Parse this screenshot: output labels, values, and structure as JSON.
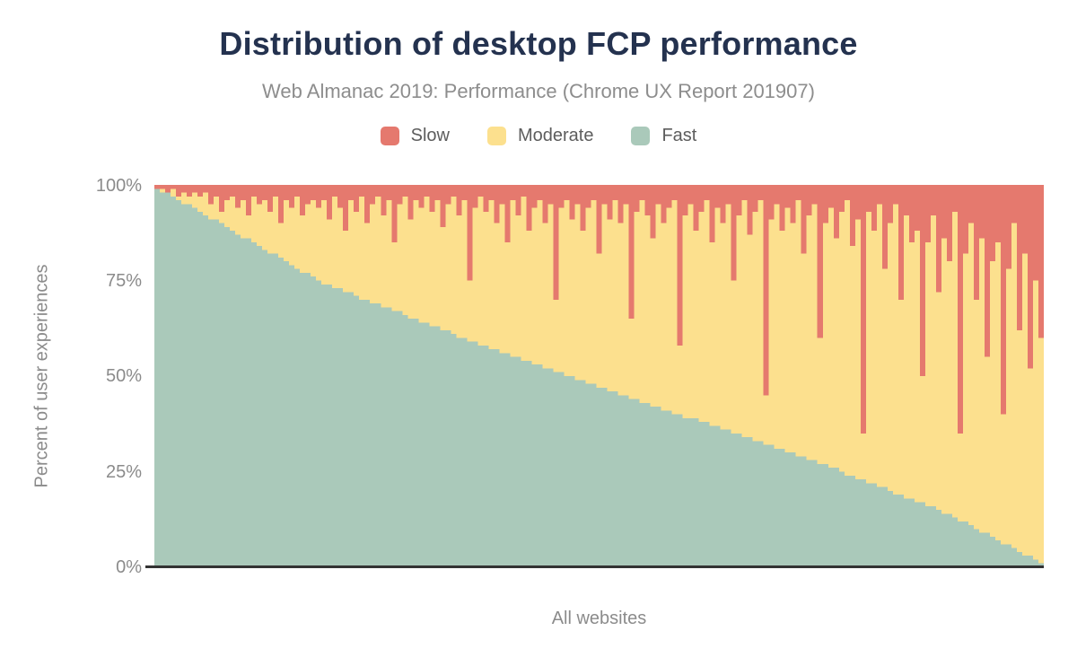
{
  "chart_data": {
    "type": "bar",
    "stacked": true,
    "normalized_percent": true,
    "title": "Distribution of desktop FCP performance",
    "subtitle": "Web Almanac 2019: Performance (Chrome UX Report 201907)",
    "xlabel": "All websites",
    "ylabel": "Percent of user experiences",
    "ylim": [
      0,
      100
    ],
    "y_tick_labels": [
      "100%",
      "75%",
      "50%",
      "25%",
      "0%"
    ],
    "legend_position": "top",
    "grid": false,
    "axis_line_color": "#333333",
    "series": [
      {
        "name": "Slow",
        "color": "#e5796e",
        "values": [
          1,
          1,
          2,
          1,
          3,
          2,
          3,
          2,
          3,
          2,
          5,
          3,
          7,
          4,
          3,
          6,
          4,
          8,
          3,
          5,
          4,
          7,
          3,
          10,
          4,
          6,
          3,
          8,
          5,
          4,
          6,
          4,
          9,
          3,
          6,
          12,
          4,
          7,
          3,
          10,
          5,
          3,
          8,
          4,
          15,
          5,
          3,
          9,
          4,
          6,
          3,
          7,
          4,
          11,
          5,
          3,
          8,
          4,
          25,
          6,
          3,
          7,
          4,
          10,
          5,
          15,
          4,
          8,
          3,
          12,
          6,
          4,
          10,
          5,
          30,
          6,
          4,
          9,
          5,
          12,
          6,
          4,
          18,
          5,
          9,
          4,
          10,
          5,
          35,
          7,
          4,
          8,
          14,
          5,
          10,
          6,
          4,
          42,
          8,
          5,
          12,
          7,
          4,
          15,
          6,
          10,
          5,
          25,
          8,
          4,
          13,
          7,
          4,
          55,
          9,
          5,
          12,
          6,
          10,
          4,
          18,
          8,
          5,
          40,
          10,
          6,
          14,
          7,
          4,
          16,
          9,
          65,
          7,
          12,
          5,
          22,
          10,
          5,
          30,
          8,
          15,
          12,
          50,
          15,
          8,
          28,
          14,
          20,
          7,
          65,
          18,
          10,
          30,
          14,
          45,
          20,
          15,
          60,
          22,
          10,
          38,
          18,
          48,
          25,
          40
        ]
      },
      {
        "name": "Moderate",
        "color": "#fce08e",
        "values": [
          0,
          1,
          0,
          2,
          1,
          3,
          2,
          4,
          4,
          6,
          4,
          6,
          3,
          7,
          9,
          7,
          10,
          6,
          12,
          11,
          13,
          11,
          15,
          9,
          16,
          15,
          19,
          15,
          18,
          20,
          19,
          22,
          17,
          24,
          21,
          16,
          24,
          22,
          27,
          20,
          26,
          28,
          24,
          28,
          18,
          28,
          31,
          26,
          31,
          30,
          33,
          30,
          33,
          27,
          33,
          36,
          32,
          36,
          16,
          35,
          39,
          35,
          39,
          33,
          39,
          29,
          41,
          37,
          43,
          34,
          41,
          43,
          38,
          43,
          19,
          43,
          46,
          41,
          46,
          39,
          46,
          48,
          35,
          48,
          45,
          50,
          45,
          50,
          21,
          49,
          53,
          49,
          44,
          53,
          49,
          53,
          56,
          18,
          53,
          56,
          49,
          55,
          58,
          48,
          57,
          54,
          59,
          40,
          57,
          62,
          53,
          60,
          63,
          13,
          59,
          64,
          57,
          64,
          60,
          67,
          53,
          64,
          67,
          33,
          63,
          68,
          60,
          68,
          72,
          60,
          68,
          12,
          71,
          66,
          74,
          57,
          70,
          76,
          51,
          74,
          67,
          71,
          33,
          69,
          76,
          57,
          72,
          66,
          80,
          23,
          70,
          79,
          60,
          77,
          46,
          72,
          78,
          34,
          72,
          85,
          58,
          79,
          49,
          73,
          59
        ]
      },
      {
        "name": "Fast",
        "color": "#aac9ba",
        "values": [
          99,
          98,
          98,
          97,
          96,
          95,
          95,
          94,
          93,
          92,
          91,
          91,
          90,
          89,
          88,
          87,
          86,
          86,
          85,
          84,
          83,
          82,
          82,
          81,
          80,
          79,
          78,
          77,
          77,
          76,
          75,
          74,
          74,
          73,
          73,
          72,
          72,
          71,
          70,
          70,
          69,
          69,
          68,
          68,
          67,
          67,
          66,
          65,
          65,
          64,
          64,
          63,
          63,
          62,
          62,
          61,
          60,
          60,
          59,
          59,
          58,
          58,
          57,
          57,
          56,
          56,
          55,
          55,
          54,
          54,
          53,
          53,
          52,
          52,
          51,
          51,
          50,
          50,
          49,
          49,
          48,
          48,
          47,
          47,
          46,
          46,
          45,
          45,
          44,
          44,
          43,
          43,
          42,
          42,
          41,
          41,
          40,
          40,
          39,
          39,
          39,
          38,
          38,
          37,
          37,
          36,
          36,
          35,
          35,
          34,
          34,
          33,
          33,
          32,
          32,
          31,
          31,
          30,
          30,
          29,
          29,
          28,
          28,
          27,
          27,
          26,
          26,
          25,
          24,
          24,
          23,
          23,
          22,
          22,
          21,
          21,
          20,
          19,
          19,
          18,
          18,
          17,
          17,
          16,
          16,
          15,
          14,
          14,
          13,
          12,
          12,
          11,
          10,
          9,
          9,
          8,
          7,
          6,
          6,
          5,
          4,
          3,
          3,
          2,
          1
        ]
      }
    ]
  }
}
